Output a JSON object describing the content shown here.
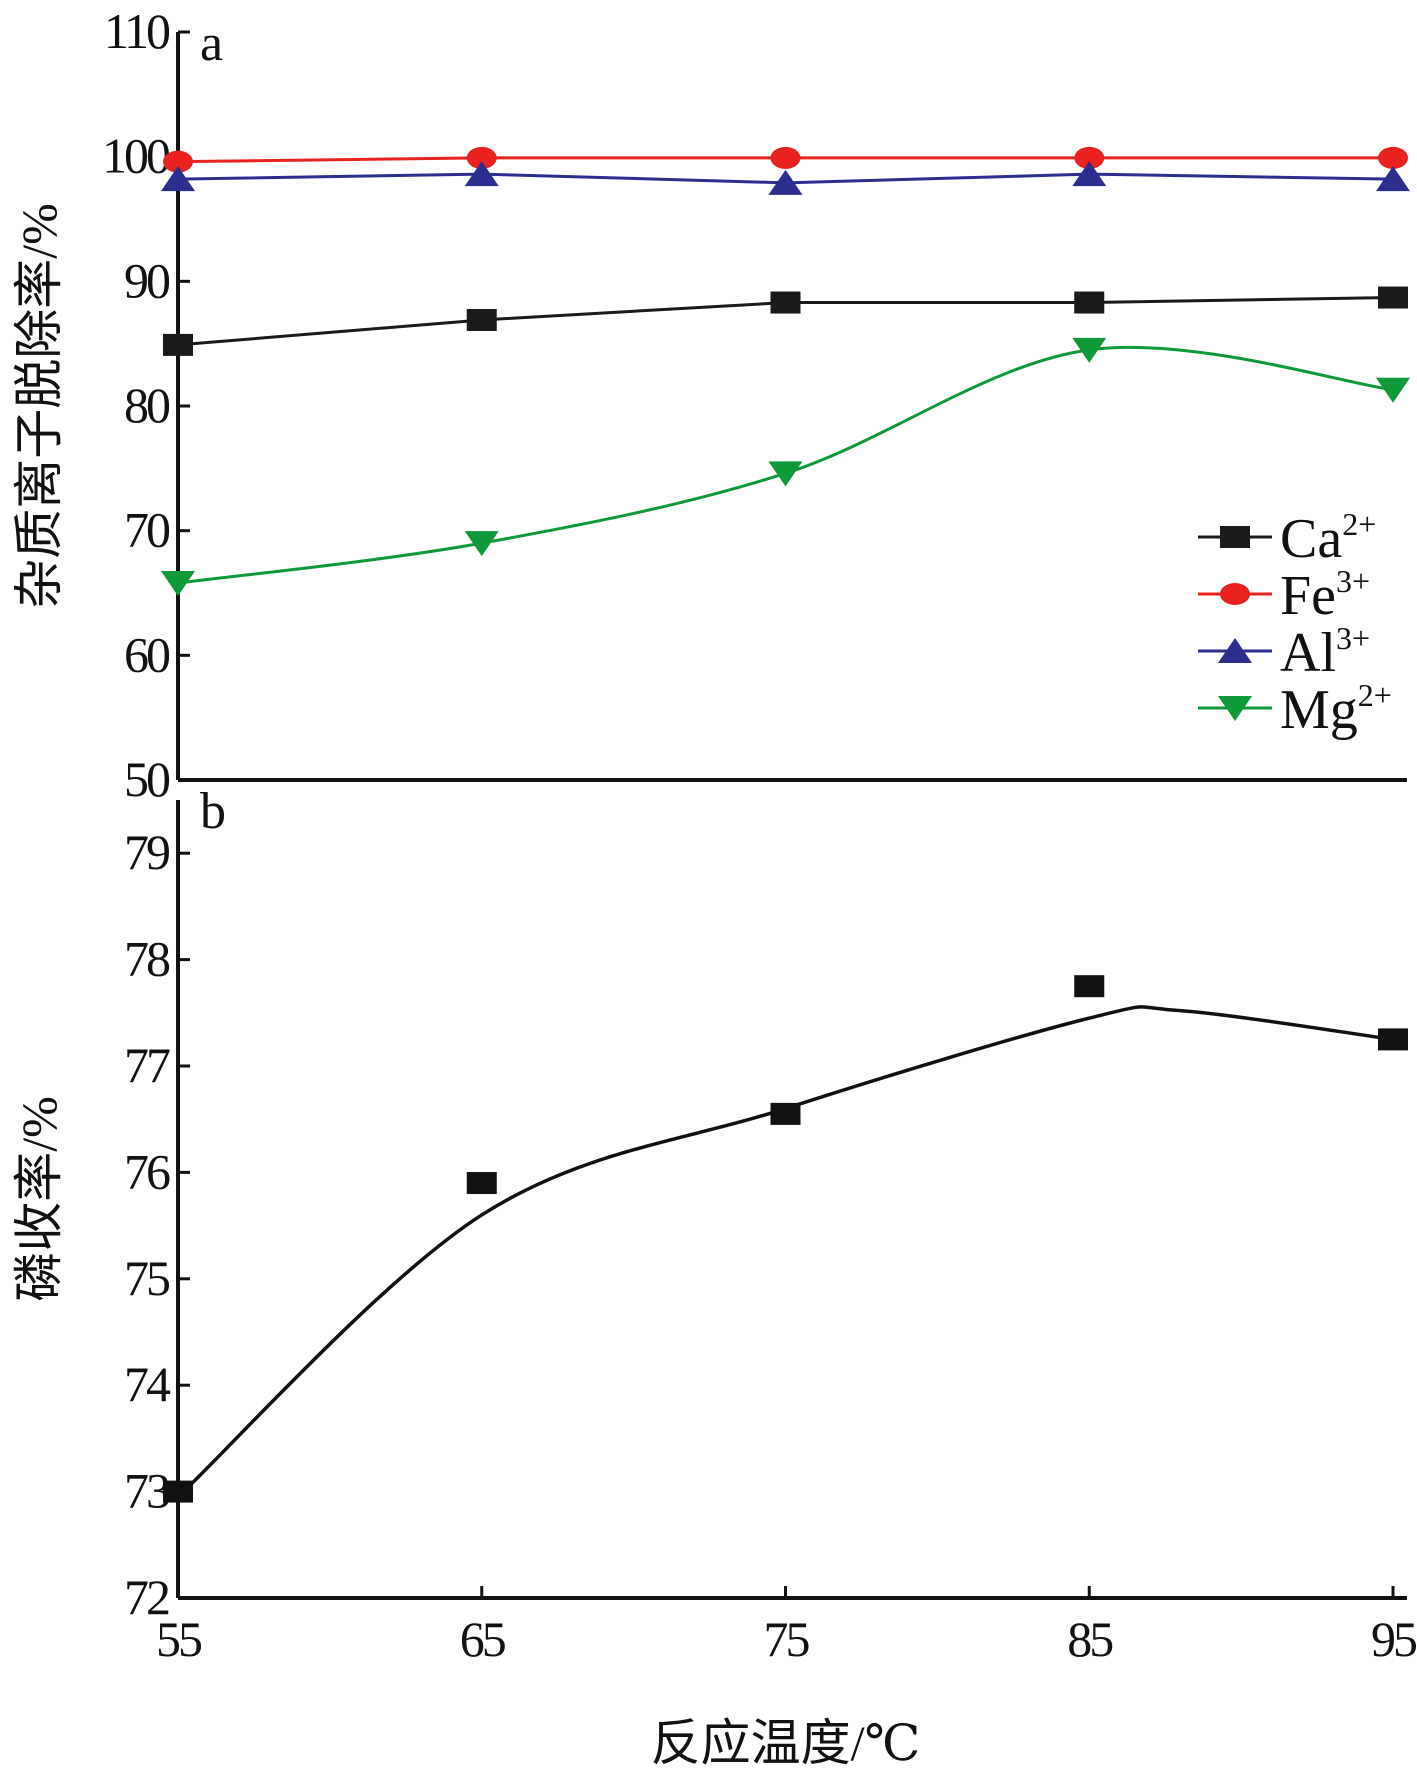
{
  "chart_data": [
    {
      "panel_label": "a",
      "type": "line",
      "ylabel": "杂质离子脱除率/%",
      "ylim": [
        50,
        110
      ],
      "yticks": [
        50,
        60,
        70,
        80,
        90,
        100,
        110
      ],
      "xlim": [
        55,
        95
      ],
      "x": [
        55,
        65,
        75,
        85,
        95
      ],
      "legend_position": "right",
      "series": [
        {
          "name": "Ca",
          "sup": "2+",
          "color": "#1a1a1a",
          "marker": "square",
          "smooth": false,
          "values": [
            84.9,
            86.9,
            88.3,
            88.3,
            88.7
          ]
        },
        {
          "name": "Fe",
          "sup": "3+",
          "color": "#e8221e",
          "marker": "circle",
          "smooth": false,
          "values": [
            99.6,
            99.9,
            99.9,
            99.9,
            99.9
          ]
        },
        {
          "name": "Al",
          "sup": "3+",
          "color": "#2b2d8f",
          "marker": "triangle-up",
          "smooth": false,
          "values": [
            98.2,
            98.6,
            97.9,
            98.6,
            98.2
          ]
        },
        {
          "name": "Mg",
          "sup": "2+",
          "color": "#0f9a3a",
          "marker": "triangle-down",
          "smooth": true,
          "values": [
            65.8,
            69.0,
            74.6,
            84.5,
            81.3
          ]
        }
      ]
    },
    {
      "panel_label": "b",
      "type": "scatter",
      "ylabel": "磷收率/%",
      "ylim": [
        72,
        79.5
      ],
      "yticks": [
        72,
        73,
        74,
        75,
        76,
        77,
        78,
        79
      ],
      "xlim": [
        55,
        95
      ],
      "x": [
        55,
        65,
        75,
        85,
        95
      ],
      "series": [
        {
          "color": "#111111",
          "marker": "square",
          "values": [
            73.0,
            75.9,
            76.55,
            77.75,
            77.25
          ]
        }
      ],
      "fit_curve": {
        "x": [
          55,
          65,
          75,
          85,
          88,
          95
        ],
        "values": [
          72.95,
          75.6,
          76.6,
          77.45,
          77.52,
          77.25
        ]
      }
    }
  ],
  "xlabel": "反应温度/℃",
  "xticks": [
    55,
    65,
    75,
    85,
    95
  ]
}
